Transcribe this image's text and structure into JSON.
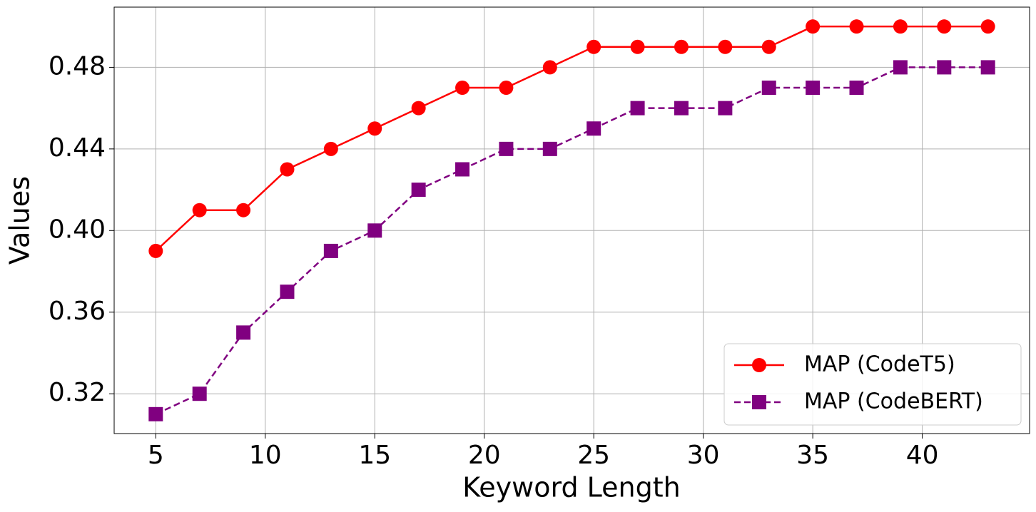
{
  "chart_data": {
    "type": "line",
    "xlabel": "Keyword Length",
    "ylabel": "Values",
    "x": [
      5,
      7,
      9,
      11,
      13,
      15,
      17,
      19,
      21,
      23,
      25,
      27,
      29,
      31,
      33,
      35,
      37,
      39,
      41,
      43
    ],
    "series": [
      {
        "name": "MAP (CodeT5)",
        "color": "red",
        "marker": "circle",
        "linestyle": "solid",
        "values": [
          0.39,
          0.41,
          0.41,
          0.43,
          0.44,
          0.45,
          0.46,
          0.47,
          0.47,
          0.48,
          0.49,
          0.49,
          0.49,
          0.49,
          0.49,
          0.5,
          0.5,
          0.5,
          0.5,
          0.5
        ]
      },
      {
        "name": "MAP (CodeBERT)",
        "color": "purple",
        "marker": "square",
        "linestyle": "dashed",
        "values": [
          0.31,
          0.32,
          0.35,
          0.37,
          0.39,
          0.4,
          0.42,
          0.43,
          0.44,
          0.44,
          0.45,
          0.46,
          0.46,
          0.46,
          0.47,
          0.47,
          0.47,
          0.48,
          0.48,
          0.48
        ]
      }
    ],
    "xlim": [
      3.1,
      44.9
    ],
    "xticks": [
      5,
      10,
      15,
      20,
      25,
      30,
      35,
      40
    ],
    "ylim": [
      0.3005,
      0.5095
    ],
    "yticks": [
      0.32,
      0.36,
      {
        "value": 0.4,
        "label": "0.40"
      },
      0.44,
      0.48
    ],
    "grid": true,
    "legend_position": "lower right"
  }
}
